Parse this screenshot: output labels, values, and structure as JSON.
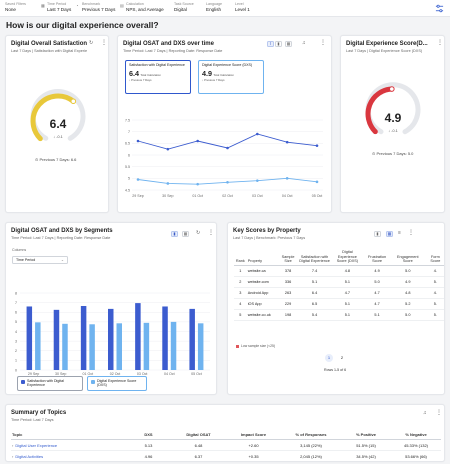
{
  "filters": [
    {
      "label": "Saved Filters",
      "value": "None",
      "icon": "bookmark-icon"
    },
    {
      "label": "Time Period",
      "value": "Last 7 Days",
      "icon": "calendar-icon"
    },
    {
      "label": "Benchmark",
      "value": "Previous 7 Days",
      "icon": "benchmark-icon"
    },
    {
      "label": "Calculation",
      "value": "NPS, and Average",
      "icon": "calculator-icon"
    },
    {
      "label": "Task Source",
      "value": "Digital",
      "icon": ""
    },
    {
      "label": "Language",
      "value": "English",
      "icon": ""
    },
    {
      "label": "Level",
      "value": "Level 1",
      "icon": ""
    }
  ],
  "page_title": "How is our digital experience overall?",
  "satisfaction": {
    "title": "Digital Overall Satisfaction",
    "subtitle": "Last 7 Days | Satisfaction with Digital Experie",
    "value": "6.4",
    "fill": 0.64,
    "delta": "↓ -0.1",
    "previous": "Previous 7 Days: 6.6",
    "color": "#e8c83a"
  },
  "dxs": {
    "title": "Digital Experience Score(D...",
    "subtitle": "Last 7 Days | Digital Experience Score (DXS)",
    "value": "4.9",
    "fill": 0.49,
    "delta": "↓ -0.1",
    "previous": "Previous 7 Days: 5.0",
    "color": "#d9373f"
  },
  "trend": {
    "title": "Digital OSAT and DXS over time",
    "subtitle": "Time Period: Last 7 Days | Reporting Date: Response Date",
    "legend": [
      {
        "title": "Satisfaction with Digital Experience",
        "value": "6.4",
        "calc": "Total Calculation",
        "delta": "↓ Previous 7 Days"
      },
      {
        "title": "Digital Experience Score (DXS)",
        "value": "4.9",
        "calc": "Total Calculation",
        "delta": "↓ Previous 7 Days"
      }
    ]
  },
  "segments": {
    "title": "Digital OSAT and DXS by Segments",
    "subtitle": "Time Period: Last 7 Days | Reporting Date: Response Date",
    "columns_label": "Columns",
    "columns_value": "Time Period",
    "legend": [
      "Satisfaction with Digital Experience",
      "Digital Experience Score (DXS)"
    ]
  },
  "keyscores": {
    "title": "Key Scores by Property",
    "subtitle": "Last 7 Days | Benchmark: Previous 7 Days",
    "headers": [
      "Rank",
      "Property",
      "Sample Size",
      "Satisfaction with Digital Experience",
      "Digital Experience Score (DXS)",
      "Frustration Score",
      "Engagement Score",
      "Form Score"
    ],
    "rows": [
      [
        "1",
        "website.ca",
        "378",
        "7.4",
        "4.8",
        "4.9",
        "5.0",
        "4."
      ],
      [
        "2",
        "website.com",
        "336",
        "5.1",
        "5.1",
        "5.0",
        "4.9",
        "5."
      ],
      [
        "3",
        "Android App",
        "263",
        "6.4",
        "4.7",
        "4.7",
        "4.8",
        "4."
      ],
      [
        "4",
        "iOS App",
        "229",
        "6.5",
        "5.1",
        "4.7",
        "5.2",
        "5."
      ],
      [
        "5",
        "website.co.uk",
        "198",
        "5.4",
        "5.1",
        "5.1",
        "5.0",
        "5."
      ]
    ],
    "note": "Low sample size (<25)",
    "pages": [
      "1",
      "2"
    ],
    "rows_of": "Rows 1-5 of 6"
  },
  "topics": {
    "title": "Summary of Topics",
    "subtitle": "Time Period: Last 7 Days",
    "headers": [
      "Topic",
      "DXS",
      "Digital OSAT",
      "Impact Score",
      "% of Responses",
      "% Positive",
      "% Negative"
    ],
    "rows": [
      [
        "Digital User Experience",
        "5.13",
        "6.48",
        "+2.60",
        "3,145 (22%)",
        "51.5% (15)",
        "45.33% (132)"
      ],
      [
        "Digital Activities",
        "4.96",
        "6.37",
        "+0.35",
        "2,045 (12%)",
        "34.5% (42)",
        "53.66% (66)"
      ]
    ]
  },
  "chart_data": [
    {
      "type": "line",
      "title": "Digital OSAT and DXS over time",
      "x": [
        "29 Sep",
        "30 Sep",
        "01 Oct",
        "02 Oct",
        "03 Oct",
        "04 Oct",
        "05 Oct"
      ],
      "ylim": [
        4.5,
        7.5
      ],
      "yticks": [
        "7.5",
        "7",
        "6.5",
        "6",
        "5.5",
        "5",
        "4.5"
      ],
      "grid": true,
      "series": [
        {
          "name": "Satisfaction with Digital Experience",
          "values": [
            6.6,
            6.25,
            6.6,
            6.3,
            6.9,
            6.55,
            6.4
          ],
          "color": "#3c5ccf"
        },
        {
          "name": "Digital Experience Score (DXS)",
          "values": [
            4.95,
            4.78,
            4.75,
            4.83,
            4.9,
            5.0,
            4.85
          ],
          "color": "#6fb3ef"
        }
      ]
    },
    {
      "type": "bar",
      "title": "Digital OSAT and DXS by Segments",
      "categories": [
        "29 Sep",
        "30 Sep",
        "01 Oct",
        "02 Oct",
        "03 Oct",
        "04 Oct",
        "05 Oct"
      ],
      "ylim": [
        0,
        8
      ],
      "yticks": [
        "8",
        "7",
        "6",
        "5",
        "4",
        "3",
        "2",
        "1",
        "0"
      ],
      "series": [
        {
          "name": "Satisfaction with Digital Experience",
          "values": [
            6.6,
            6.25,
            6.65,
            6.35,
            6.95,
            6.6,
            6.35
          ],
          "color": "#3c5ccf"
        },
        {
          "name": "Digital Experience Score (DXS)",
          "values": [
            4.95,
            4.8,
            4.75,
            4.85,
            4.9,
            5.0,
            4.85
          ],
          "color": "#6fb3ef"
        }
      ]
    }
  ]
}
